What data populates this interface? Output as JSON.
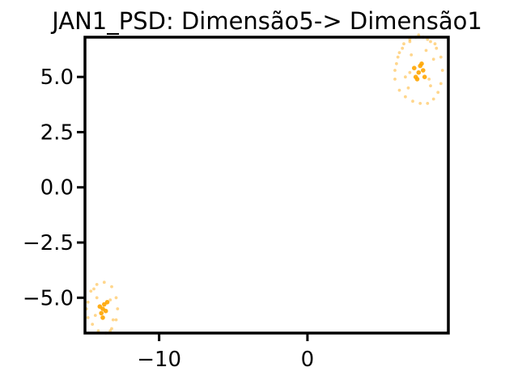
{
  "chart_data": {
    "type": "scatter",
    "title": "JAN1_PSD: Dimensão5-> Dimensão1",
    "xlabel": "",
    "ylabel": "",
    "xlim": [
      -15.0,
      9.5
    ],
    "ylim": [
      -6.6,
      6.8
    ],
    "xticks": [
      -10,
      0
    ],
    "xtick_labels": [
      "−10",
      "0"
    ],
    "yticks": [
      5.0,
      2.5,
      0.0,
      -2.5,
      -5.0
    ],
    "ytick_labels": [
      "5.0",
      "2.5",
      "0.0",
      "−2.5",
      "−5.0"
    ],
    "grid": false,
    "color": "#FFA500",
    "clusters": [
      {
        "center": [
          7.5,
          5.2
        ],
        "radius": [
          1.6,
          1.4
        ]
      },
      {
        "center": [
          -13.8,
          -5.5
        ],
        "radius": [
          1.0,
          1.1
        ]
      }
    ],
    "series": [
      {
        "x": [
          7.5,
          7.6,
          7.3,
          7.8,
          7.4,
          7.7,
          7.2,
          7.9,
          6.0,
          6.2,
          6.5,
          6.9,
          7.3,
          7.8,
          8.3,
          8.7,
          9.0,
          9.1,
          9.0,
          8.8,
          8.5,
          8.1,
          7.6,
          7.1,
          6.6,
          6.2,
          5.9,
          5.9,
          6.1,
          6.4,
          6.9,
          7.5,
          8.1,
          8.6,
          6.6,
          6.8,
          8.3,
          8.5,
          7.0,
          8.0,
          6.9,
          8.2
        ],
        "y": [
          5.2,
          5.5,
          5.0,
          5.3,
          4.9,
          5.6,
          5.4,
          5.0,
          5.6,
          6.1,
          6.5,
          6.7,
          6.8,
          6.8,
          6.6,
          6.3,
          5.9,
          5.3,
          4.7,
          4.3,
          4.0,
          3.8,
          3.8,
          3.9,
          4.1,
          4.4,
          4.9,
          5.3,
          5.9,
          6.3,
          6.6,
          6.9,
          6.7,
          6.5,
          5.0,
          4.5,
          4.6,
          5.8,
          6.0,
          6.2,
          5.2,
          4.9
        ]
      },
      {
        "x": [
          -13.8,
          -13.7,
          -13.9,
          -13.6,
          -14.0,
          -13.8,
          -13.5,
          -14.8,
          -14.6,
          -14.2,
          -13.7,
          -13.2,
          -12.9,
          -12.8,
          -12.9,
          -13.2,
          -13.6,
          -14.1,
          -14.5,
          -14.8,
          -14.9,
          -14.4,
          -13.3,
          -14.3,
          -13.3,
          -14.2,
          -13.1
        ],
        "y": [
          -5.5,
          -5.3,
          -5.7,
          -5.6,
          -5.4,
          -5.9,
          -5.2,
          -5.2,
          -4.7,
          -4.4,
          -4.3,
          -4.5,
          -5.0,
          -5.5,
          -6.0,
          -6.4,
          -6.6,
          -6.5,
          -6.2,
          -5.9,
          -5.5,
          -4.6,
          -6.5,
          -5.8,
          -5.1,
          -5.0,
          -6.0
        ]
      }
    ]
  }
}
